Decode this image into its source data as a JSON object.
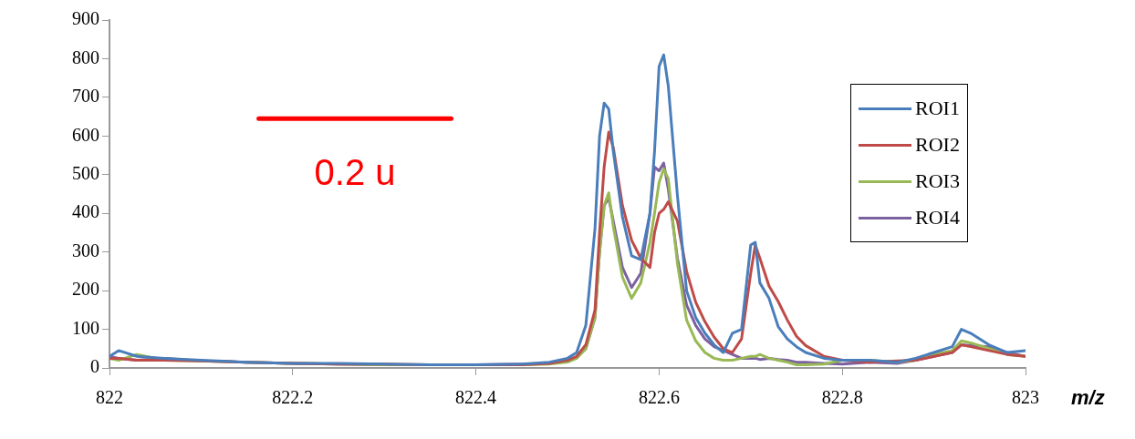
{
  "chart_data": {
    "type": "line",
    "xlabel": "m/z",
    "x": [
      822,
      822.01,
      822.03,
      822.06,
      822.1,
      822.15,
      822.2,
      822.25,
      822.3,
      822.35,
      822.4,
      822.45,
      822.48,
      822.5,
      822.51,
      822.52,
      822.53,
      822.535,
      822.54,
      822.545,
      822.55,
      822.56,
      822.57,
      822.58,
      822.59,
      822.595,
      822.6,
      822.605,
      822.61,
      822.62,
      822.63,
      822.64,
      822.65,
      822.66,
      822.67,
      822.68,
      822.69,
      822.7,
      822.705,
      822.71,
      822.72,
      822.73,
      822.74,
      822.75,
      822.76,
      822.78,
      822.8,
      822.83,
      822.86,
      822.88,
      822.9,
      822.92,
      822.93,
      822.94,
      822.96,
      822.98,
      823
    ],
    "series": [
      {
        "name": "ROI1",
        "color": "#4a7ebb",
        "values": [
          30,
          45,
          30,
          25,
          20,
          15,
          12,
          12,
          10,
          8,
          8,
          10,
          15,
          25,
          40,
          110,
          360,
          600,
          685,
          670,
          560,
          390,
          290,
          280,
          400,
          560,
          780,
          810,
          730,
          446,
          200,
          130,
          90,
          60,
          40,
          90,
          100,
          318,
          325,
          220,
          180,
          107,
          75,
          55,
          40,
          25,
          20,
          20,
          15,
          25,
          40,
          55,
          100,
          90,
          60,
          40,
          45
        ]
      },
      {
        "name": "ROI2",
        "color": "#be4b48",
        "values": [
          25,
          25,
          20,
          20,
          18,
          15,
          12,
          10,
          10,
          8,
          8,
          8,
          12,
          20,
          30,
          60,
          150,
          350,
          520,
          610,
          570,
          420,
          330,
          284,
          260,
          350,
          400,
          410,
          430,
          380,
          250,
          170,
          120,
          80,
          50,
          40,
          75,
          245,
          318,
          284,
          212,
          172,
          124,
          82,
          58,
          30,
          20,
          15,
          18,
          20,
          30,
          40,
          60,
          55,
          45,
          35,
          30
        ]
      },
      {
        "name": "ROI3",
        "color": "#98b954",
        "values": [
          25,
          20,
          35,
          20,
          18,
          15,
          12,
          10,
          8,
          8,
          8,
          8,
          10,
          15,
          25,
          50,
          130,
          300,
          420,
          453,
          366,
          235,
          180,
          220,
          325,
          400,
          480,
          515,
          490,
          270,
          124,
          70,
          40,
          25,
          20,
          20,
          25,
          30,
          30,
          35,
          25,
          20,
          15,
          8,
          8,
          10,
          20,
          20,
          15,
          20,
          35,
          45,
          70,
          65,
          50,
          35,
          30
        ]
      },
      {
        "name": "ROI4",
        "color": "#7d60a0",
        "values": [
          30,
          25,
          20,
          25,
          18,
          15,
          12,
          10,
          8,
          8,
          8,
          10,
          12,
          18,
          28,
          50,
          130,
          300,
          420,
          440,
          380,
          260,
          208,
          245,
          400,
          520,
          510,
          530,
          463,
          284,
          163,
          110,
          75,
          55,
          45,
          35,
          25,
          25,
          25,
          22,
          25,
          22,
          20,
          15,
          15,
          12,
          10,
          15,
          12,
          20,
          30,
          40,
          60,
          58,
          55,
          40,
          30
        ]
      },
      {
        "name": "0.2 u",
        "color": "#ff0000",
        "x": [
          822.163,
          822.373
        ],
        "values": [
          645,
          645
        ]
      }
    ],
    "xlim": [
      822,
      823
    ],
    "xticks": [
      822,
      822.2,
      822.4,
      822.6,
      822.8,
      823
    ],
    "ylim": [
      0,
      900
    ],
    "yticks": [
      0,
      100,
      200,
      300,
      400,
      500,
      600,
      700,
      800,
      900
    ],
    "legend": "top right",
    "marker": "none",
    "line_style": "solid",
    "grid": false
  }
}
